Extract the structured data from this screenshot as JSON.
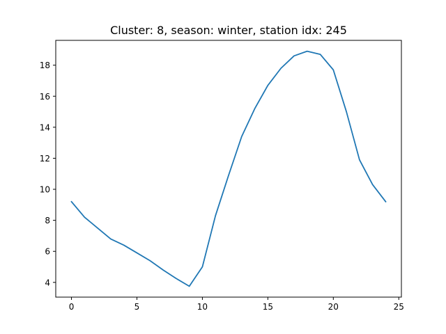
{
  "chart_data": {
    "type": "line",
    "title": "Cluster: 8, season: winter, station idx: 245",
    "xlabel": "",
    "ylabel": "",
    "xlim": [
      -1.2,
      25.2
    ],
    "ylim": [
      3.05,
      19.6
    ],
    "xticks": [
      0,
      5,
      10,
      15,
      20,
      25
    ],
    "yticks": [
      4,
      6,
      8,
      10,
      12,
      14,
      16,
      18
    ],
    "grid": false,
    "series": [
      {
        "color": "#1f77b4",
        "x": [
          0,
          1,
          2,
          3,
          4,
          5,
          6,
          7,
          8,
          9,
          10,
          11,
          12,
          13,
          14,
          15,
          16,
          17,
          18,
          19,
          20,
          21,
          22,
          23,
          24
        ],
        "y": [
          9.2,
          8.2,
          7.5,
          6.8,
          6.4,
          5.9,
          5.4,
          4.8,
          4.25,
          3.75,
          5.0,
          8.3,
          10.9,
          13.4,
          15.2,
          16.7,
          17.8,
          18.6,
          18.9,
          18.7,
          17.7,
          15.0,
          11.9,
          10.3,
          9.2
        ]
      }
    ]
  }
}
